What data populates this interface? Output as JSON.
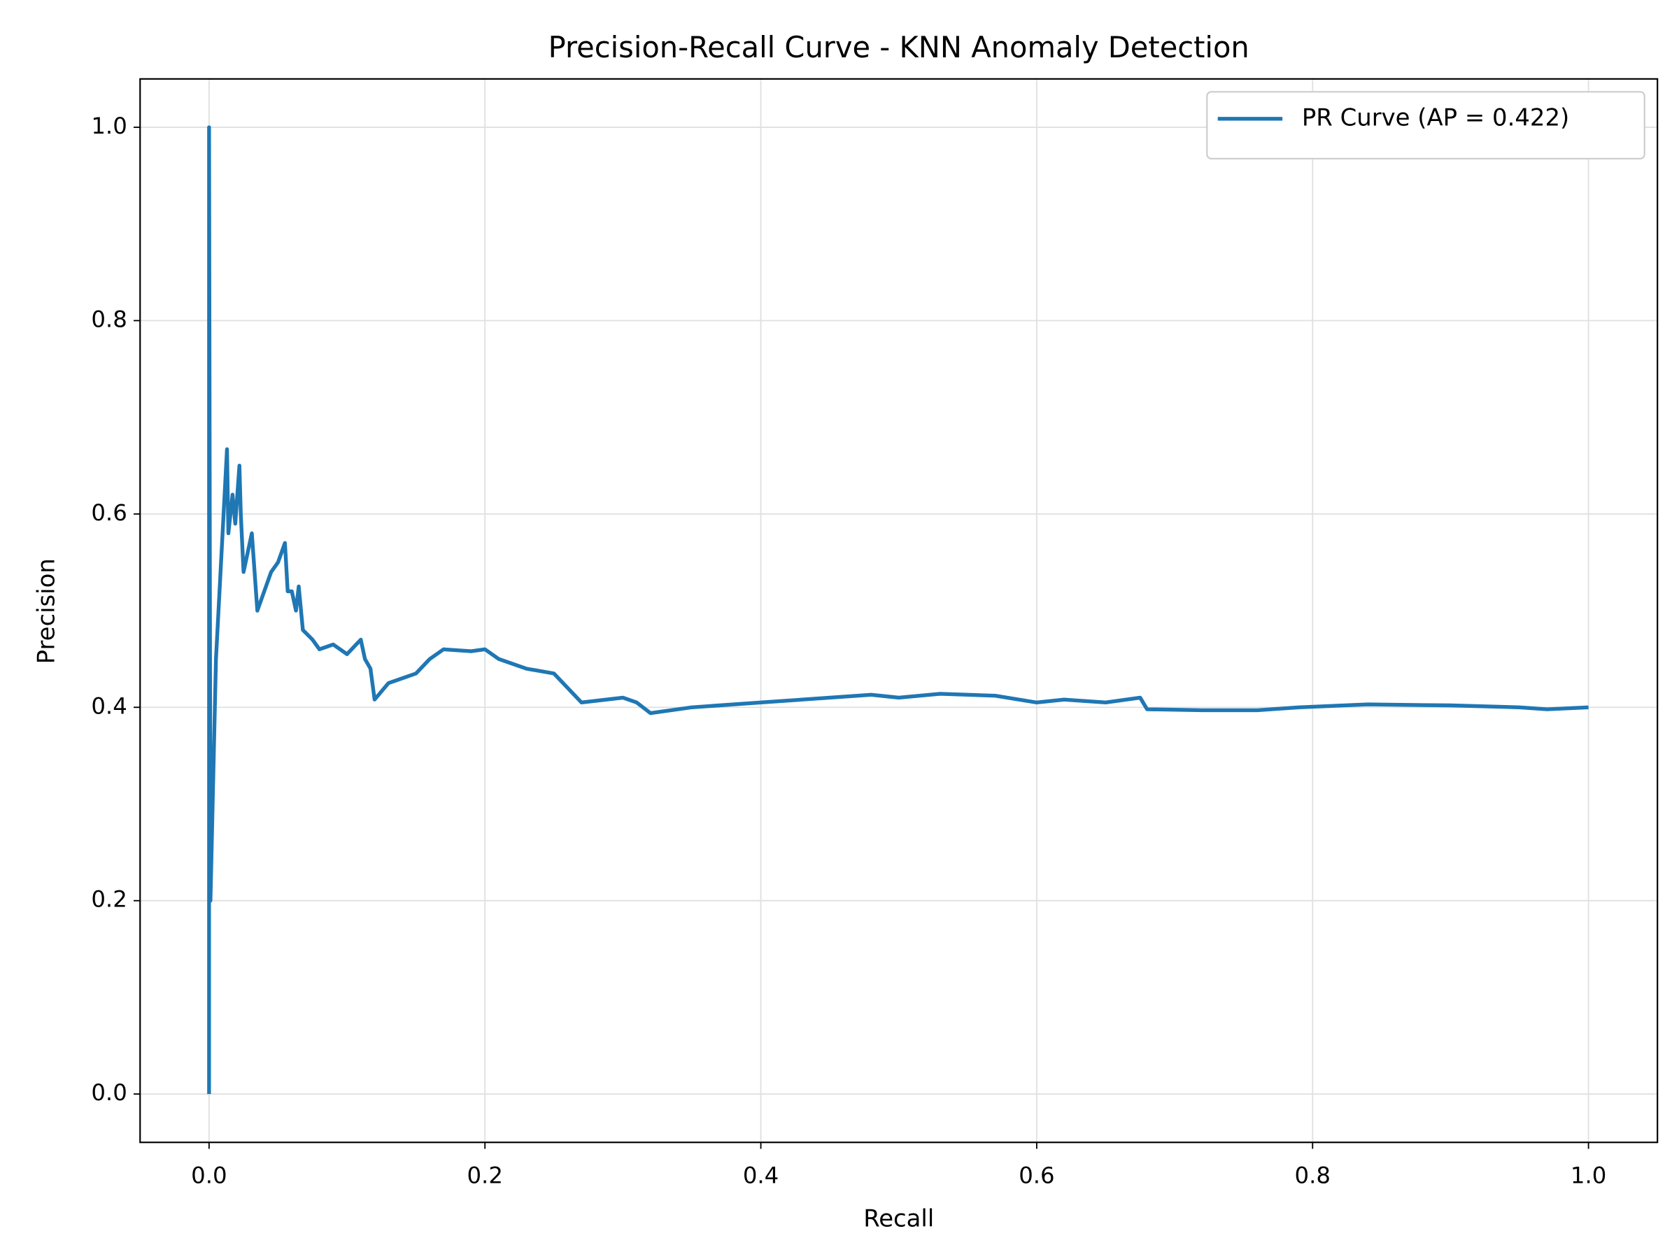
{
  "chart_data": {
    "type": "line",
    "title": "Precision-Recall Curve - KNN Anomaly Detection",
    "x_label": "Recall",
    "y_label": "Precision",
    "xlim": [
      -0.05,
      1.05
    ],
    "ylim": [
      -0.05,
      1.05
    ],
    "xticks": [
      {
        "value": 0,
        "label": "0.0"
      },
      0.2,
      0.4,
      0.6,
      0.8,
      {
        "value": 1,
        "label": "1.0"
      }
    ],
    "yticks": [
      {
        "value": 0,
        "label": "0.0"
      },
      0.2,
      0.4,
      0.6,
      0.8,
      {
        "value": 1,
        "label": "1.0"
      }
    ],
    "grid": true,
    "legend_position": "upper right",
    "series": [
      {
        "name": "PR Curve (AP = 0.422)",
        "color": "#1f77b4",
        "x": [
          0,
          0,
          0.001,
          0.005,
          0.013,
          0.014,
          0.017,
          0.019,
          0.022,
          0.023,
          0.025,
          0.028,
          0.031,
          0.035,
          0.04,
          0.045,
          0.05,
          0.055,
          0.057,
          0.06,
          0.063,
          0.065,
          0.068,
          0.075,
          0.08,
          0.09,
          0.1,
          0.11,
          0.113,
          0.117,
          0.12,
          0.13,
          0.14,
          0.15,
          0.16,
          0.17,
          0.19,
          0.2,
          0.21,
          0.23,
          0.25,
          0.26,
          0.27,
          0.3,
          0.31,
          0.32,
          0.35,
          0.4,
          0.45,
          0.48,
          0.5,
          0.53,
          0.57,
          0.6,
          0.62,
          0.65,
          0.675,
          0.68,
          0.72,
          0.76,
          0.79,
          0.84,
          0.9,
          0.95,
          0.97,
          1.0
        ],
        "values": [
          0,
          1.0,
          0.2,
          0.45,
          0.667,
          0.58,
          0.62,
          0.59,
          0.65,
          0.6,
          0.54,
          0.56,
          0.58,
          0.5,
          0.52,
          0.54,
          0.55,
          0.57,
          0.52,
          0.52,
          0.5,
          0.525,
          0.48,
          0.47,
          0.46,
          0.465,
          0.455,
          0.47,
          0.45,
          0.44,
          0.408,
          0.425,
          0.43,
          0.435,
          0.45,
          0.46,
          0.458,
          0.46,
          0.45,
          0.44,
          0.435,
          0.42,
          0.405,
          0.41,
          0.405,
          0.394,
          0.4,
          0.405,
          0.41,
          0.413,
          0.41,
          0.414,
          0.412,
          0.405,
          0.408,
          0.405,
          0.41,
          0.398,
          0.397,
          0.397,
          0.4,
          0.403,
          0.402,
          0.4,
          0.398,
          0.4
        ]
      }
    ]
  }
}
